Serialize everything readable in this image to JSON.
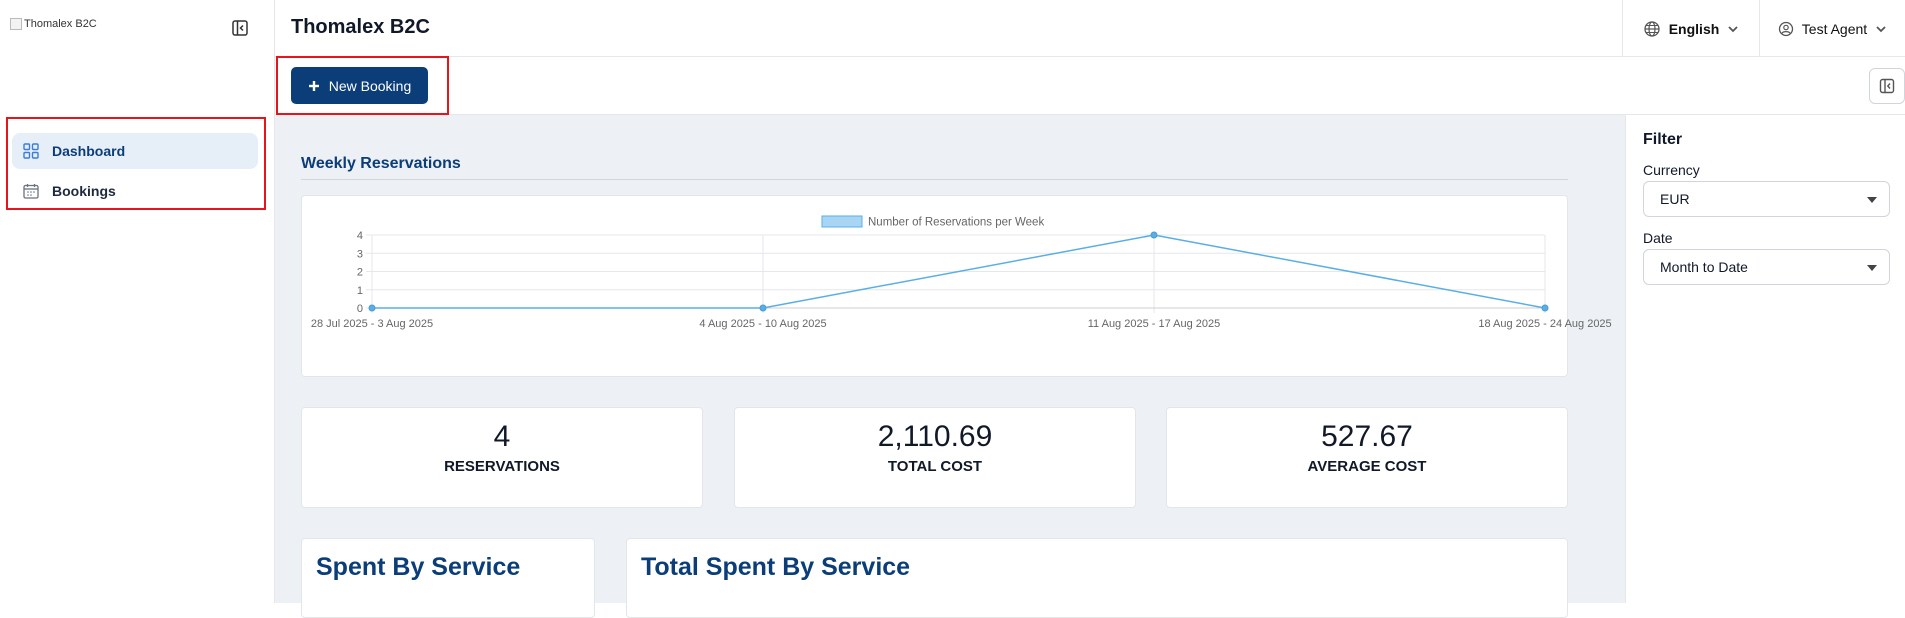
{
  "sidebar": {
    "logo_alt": "Thomalex B2C",
    "items": [
      {
        "label": "Dashboard",
        "icon": "grid-icon",
        "active": true
      },
      {
        "label": "Bookings",
        "icon": "calendar-icon",
        "active": false
      }
    ]
  },
  "header": {
    "title": "Thomalex B2C",
    "language": "English",
    "user": "Test Agent"
  },
  "actions": {
    "new_booking": "New Booking"
  },
  "dashboard": {
    "section_title": "Weekly Reservations",
    "stats": [
      {
        "value": "4",
        "label": "RESERVATIONS"
      },
      {
        "value": "2,110.69",
        "label": "TOTAL COST"
      },
      {
        "value": "527.67",
        "label": "AVERAGE COST"
      }
    ],
    "spent_by_service": "Spent By Service",
    "total_spent_by_service": "Total Spent By Service"
  },
  "filter": {
    "title": "Filter",
    "currency_label": "Currency",
    "currency_value": "EUR",
    "date_label": "Date",
    "date_value": "Month to Date"
  },
  "colors": {
    "brand": "#0b3d78",
    "highlight": "#e8141c",
    "series": "#5aaee6"
  },
  "chart_data": {
    "type": "line",
    "title": "",
    "categories": [
      "28 Jul 2025 - 3 Aug 2025",
      "4 Aug 2025 - 10 Aug 2025",
      "11 Aug 2025 - 17 Aug 2025",
      "18 Aug 2025 - 24 Aug 2025"
    ],
    "series": [
      {
        "name": "Number of Reservations per Week",
        "values": [
          0,
          0,
          4,
          0
        ]
      }
    ],
    "ylim": [
      0,
      4
    ],
    "yticks": [
      0,
      1,
      2,
      3,
      4
    ],
    "grid": true,
    "legend": "top"
  }
}
